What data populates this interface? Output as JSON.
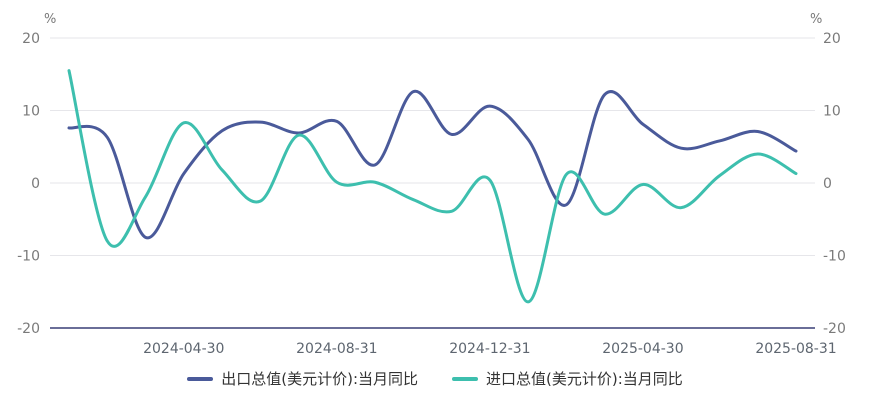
{
  "chart_data": {
    "type": "line",
    "unit_left": "%",
    "unit_right": "%",
    "ylim": [
      -20,
      20
    ],
    "y_ticks": [
      "20",
      "10",
      "0",
      "-10",
      "-20"
    ],
    "x": [
      "2024-01-31",
      "2024-02-29",
      "2024-03-31",
      "2024-04-30",
      "2024-05-31",
      "2024-06-30",
      "2024-07-31",
      "2024-08-31",
      "2024-09-30",
      "2024-10-31",
      "2024-11-30",
      "2024-12-31",
      "2025-01-31",
      "2025-02-28",
      "2025-03-31",
      "2025-04-30",
      "2025-05-31",
      "2025-06-30",
      "2025-07-31",
      "2025-08-31"
    ],
    "x_tick_labels": [
      "2024-04-30",
      "2024-08-31",
      "2024-12-31",
      "2025-04-30",
      "2025-08-31"
    ],
    "series": [
      {
        "name": "出口总值(美元计价):当月同比",
        "color": "#4a5a9a",
        "values": [
          7.6,
          6.3,
          -7.5,
          1.3,
          7.2,
          8.4,
          6.9,
          8.5,
          2.5,
          12.6,
          6.7,
          10.6,
          6.0,
          -3.0,
          12.2,
          8.1,
          4.8,
          5.8,
          7.1,
          4.4
        ]
      },
      {
        "name": "进口总值(美元计价):当月同比",
        "color": "#3dbfae",
        "values": [
          15.5,
          -8.0,
          -1.9,
          8.3,
          1.8,
          -2.5,
          6.6,
          0.1,
          0.1,
          -2.3,
          -3.9,
          0.4,
          -16.4,
          1.2,
          -4.3,
          -0.2,
          -3.4,
          1.0,
          4.0,
          1.3
        ]
      }
    ],
    "grid": true,
    "legend_position": "bottom"
  }
}
